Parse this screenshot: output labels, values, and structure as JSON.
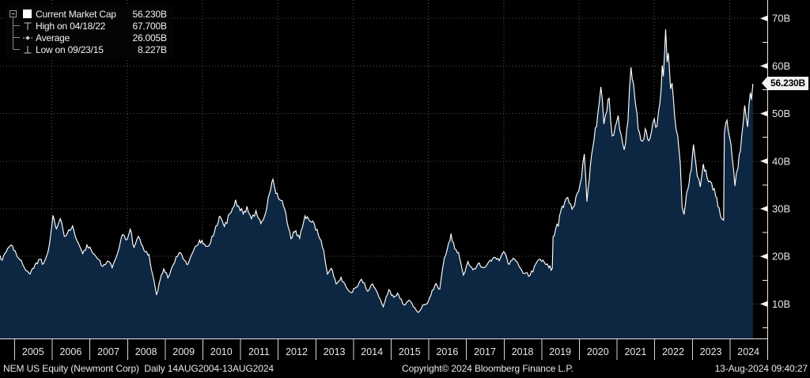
{
  "legend": {
    "rows": [
      {
        "label": "Current Market Cap",
        "value": "56.230B",
        "marker": "square"
      },
      {
        "label": "High on 04/18/22",
        "value": "67.700B",
        "marker": "high"
      },
      {
        "label": "Average",
        "value": "26.005B",
        "marker": "average"
      },
      {
        "label": "Low on 09/23/15",
        "value": "8.227B",
        "marker": "low"
      }
    ]
  },
  "y_axis": {
    "labels": [
      {
        "value": 70,
        "text": "70B"
      },
      {
        "value": 60,
        "text": "60B"
      },
      {
        "value": 50,
        "text": "50B"
      },
      {
        "value": 40,
        "text": "40B"
      },
      {
        "value": 30,
        "text": "30B"
      },
      {
        "value": 20,
        "text": "20B"
      },
      {
        "value": 10,
        "text": "10B"
      }
    ],
    "minor_ticks": [
      65,
      55,
      45,
      35,
      25,
      15,
      5
    ],
    "current": {
      "value": 56.23,
      "text": "56.230B"
    }
  },
  "x_axis": {
    "years": [
      "2005",
      "2006",
      "2007",
      "2008",
      "2009",
      "2010",
      "2011",
      "2012",
      "2013",
      "2014",
      "2015",
      "2016",
      "2017",
      "2018",
      "2019",
      "2020",
      "2021",
      "2022",
      "2023",
      "2024"
    ]
  },
  "footer": {
    "instrument": "NEM US Equity (Newmont Corp)",
    "period_range": "Daily 14AUG2004-13AUG2024",
    "copyright": "Copyright© 2024 Bloomberg Finance L.P.",
    "timestamp": "13-Aug-2024 09:40:27"
  },
  "chart_data": {
    "type": "area",
    "title": "Current Market Cap",
    "series_name": "Current Market Cap",
    "x_unit": "decimal_year",
    "y_unit": "USD billions",
    "x_range": [
      "14AUG2004",
      "13AUG2024"
    ],
    "ylim": [
      2.8,
      73.9
    ],
    "grid": "dotted",
    "x_gridline_years": [
      2006,
      2008,
      2010,
      2012,
      2014,
      2016,
      2018,
      2020,
      2022,
      2024
    ],
    "legend_position": "top-left",
    "stats": {
      "current": 56.23,
      "high": {
        "date": "04/18/22",
        "value": 67.7
      },
      "average": 26.005,
      "low": {
        "date": "09/23/15",
        "value": 8.227
      }
    },
    "colors": {
      "background": "#000000",
      "fill": "#0d2742",
      "line": "#ffffff",
      "grid": "#565656",
      "axis_text": "#e8e8e8",
      "badge_bg": "#f2f2f2",
      "badge_text": "#000000"
    },
    "points": [
      [
        2004.62,
        20.2
      ],
      [
        2004.68,
        19.2
      ],
      [
        2004.75,
        20.6
      ],
      [
        2004.82,
        21.6
      ],
      [
        2004.92,
        22.4
      ],
      [
        2005.02,
        21.2
      ],
      [
        2005.12,
        19.6
      ],
      [
        2005.25,
        17.9
      ],
      [
        2005.42,
        16.3
      ],
      [
        2005.55,
        18.2
      ],
      [
        2005.68,
        19.4
      ],
      [
        2005.78,
        18.5
      ],
      [
        2005.9,
        21.0
      ],
      [
        2006.03,
        28.6
      ],
      [
        2006.12,
        25.8
      ],
      [
        2006.22,
        27.9
      ],
      [
        2006.33,
        24.2
      ],
      [
        2006.45,
        25.6
      ],
      [
        2006.55,
        26.4
      ],
      [
        2006.7,
        22.8
      ],
      [
        2006.82,
        20.6
      ],
      [
        2006.93,
        22.4
      ],
      [
        2007.05,
        21.2
      ],
      [
        2007.2,
        19.6
      ],
      [
        2007.35,
        17.9
      ],
      [
        2007.48,
        19.0
      ],
      [
        2007.6,
        17.6
      ],
      [
        2007.75,
        20.8
      ],
      [
        2007.88,
        24.6
      ],
      [
        2008.0,
        23.5
      ],
      [
        2008.08,
        25.7
      ],
      [
        2008.18,
        21.9
      ],
      [
        2008.3,
        24.2
      ],
      [
        2008.45,
        21.2
      ],
      [
        2008.58,
        20.4
      ],
      [
        2008.68,
        16.0
      ],
      [
        2008.78,
        11.9
      ],
      [
        2008.88,
        15.2
      ],
      [
        2008.97,
        17.4
      ],
      [
        2009.08,
        15.5
      ],
      [
        2009.22,
        18.2
      ],
      [
        2009.38,
        20.8
      ],
      [
        2009.52,
        19.2
      ],
      [
        2009.62,
        18.4
      ],
      [
        2009.78,
        21.6
      ],
      [
        2009.92,
        23.4
      ],
      [
        2010.05,
        22.6
      ],
      [
        2010.18,
        22.3
      ],
      [
        2010.32,
        25.2
      ],
      [
        2010.45,
        28.4
      ],
      [
        2010.58,
        26.3
      ],
      [
        2010.72,
        28.9
      ],
      [
        2010.88,
        31.9
      ],
      [
        2011.0,
        29.6
      ],
      [
        2011.08,
        28.9
      ],
      [
        2011.18,
        30.5
      ],
      [
        2011.3,
        27.9
      ],
      [
        2011.42,
        29.6
      ],
      [
        2011.55,
        26.9
      ],
      [
        2011.68,
        29.2
      ],
      [
        2011.78,
        33.2
      ],
      [
        2011.87,
        36.2
      ],
      [
        2011.95,
        33.2
      ],
      [
        2012.05,
        31.9
      ],
      [
        2012.18,
        30.0
      ],
      [
        2012.35,
        23.7
      ],
      [
        2012.48,
        25.4
      ],
      [
        2012.58,
        23.8
      ],
      [
        2012.72,
        28.5
      ],
      [
        2012.85,
        27.4
      ],
      [
        2012.97,
        26.8
      ],
      [
        2013.08,
        24.4
      ],
      [
        2013.22,
        21.2
      ],
      [
        2013.32,
        16.3
      ],
      [
        2013.42,
        17.5
      ],
      [
        2013.55,
        14.2
      ],
      [
        2013.68,
        15.6
      ],
      [
        2013.82,
        13.5
      ],
      [
        2013.95,
        12.4
      ],
      [
        2014.08,
        13.5
      ],
      [
        2014.22,
        15.2
      ],
      [
        2014.38,
        12.7
      ],
      [
        2014.52,
        14.2
      ],
      [
        2014.65,
        12.3
      ],
      [
        2014.8,
        9.4
      ],
      [
        2014.95,
        13.0
      ],
      [
        2015.08,
        11.4
      ],
      [
        2015.18,
        12.3
      ],
      [
        2015.35,
        9.8
      ],
      [
        2015.48,
        10.8
      ],
      [
        2015.6,
        9.4
      ],
      [
        2015.73,
        8.227
      ],
      [
        2015.85,
        9.8
      ],
      [
        2015.97,
        10.1
      ],
      [
        2016.1,
        12.9
      ],
      [
        2016.2,
        14.3
      ],
      [
        2016.3,
        13.1
      ],
      [
        2016.42,
        19.6
      ],
      [
        2016.5,
        21.5
      ],
      [
        2016.6,
        24.8
      ],
      [
        2016.7,
        21.6
      ],
      [
        2016.8,
        20.8
      ],
      [
        2016.93,
        16.1
      ],
      [
        2017.05,
        18.9
      ],
      [
        2017.18,
        17.2
      ],
      [
        2017.32,
        18.5
      ],
      [
        2017.45,
        17.6
      ],
      [
        2017.6,
        18.8
      ],
      [
        2017.75,
        19.8
      ],
      [
        2017.88,
        19.1
      ],
      [
        2018.0,
        21.0
      ],
      [
        2018.12,
        18.4
      ],
      [
        2018.25,
        19.6
      ],
      [
        2018.4,
        18.1
      ],
      [
        2018.55,
        16.4
      ],
      [
        2018.7,
        16.0
      ],
      [
        2018.85,
        18.4
      ],
      [
        2018.97,
        19.4
      ],
      [
        2019.08,
        18.7
      ],
      [
        2019.2,
        17.6
      ],
      [
        2019.29,
        17.5
      ],
      [
        2019.31,
        24.2
      ],
      [
        2019.38,
        25.8
      ],
      [
        2019.45,
        26.4
      ],
      [
        2019.52,
        29.6
      ],
      [
        2019.62,
        31.4
      ],
      [
        2019.7,
        32.4
      ],
      [
        2019.78,
        31.0
      ],
      [
        2019.85,
        30.4
      ],
      [
        2019.95,
        33.2
      ],
      [
        2020.03,
        35.2
      ],
      [
        2020.1,
        39.5
      ],
      [
        2020.14,
        41.5
      ],
      [
        2020.21,
        31.5
      ],
      [
        2020.3,
        39.0
      ],
      [
        2020.4,
        44.5
      ],
      [
        2020.5,
        50.0
      ],
      [
        2020.58,
        55.6
      ],
      [
        2020.66,
        47.8
      ],
      [
        2020.74,
        50.5
      ],
      [
        2020.8,
        53.2
      ],
      [
        2020.88,
        45.3
      ],
      [
        2020.96,
        47.2
      ],
      [
        2021.04,
        49.6
      ],
      [
        2021.12,
        45.5
      ],
      [
        2021.2,
        42.4
      ],
      [
        2021.3,
        48.5
      ],
      [
        2021.38,
        59.7
      ],
      [
        2021.48,
        53.5
      ],
      [
        2021.57,
        46.8
      ],
      [
        2021.68,
        44.2
      ],
      [
        2021.76,
        46.8
      ],
      [
        2021.85,
        44.3
      ],
      [
        2021.93,
        46.5
      ],
      [
        2022.0,
        48.9
      ],
      [
        2022.07,
        47.3
      ],
      [
        2022.15,
        52.3
      ],
      [
        2022.21,
        60.1
      ],
      [
        2022.24,
        57.8
      ],
      [
        2022.3,
        67.7
      ],
      [
        2022.34,
        60.8
      ],
      [
        2022.37,
        62.7
      ],
      [
        2022.43,
        55.2
      ],
      [
        2022.47,
        56.4
      ],
      [
        2022.54,
        49.4
      ],
      [
        2022.62,
        45.4
      ],
      [
        2022.69,
        39.5
      ],
      [
        2022.74,
        30.2
      ],
      [
        2022.79,
        28.8
      ],
      [
        2022.86,
        33.4
      ],
      [
        2022.92,
        35.2
      ],
      [
        2022.98,
        38.0
      ],
      [
        2023.04,
        43.5
      ],
      [
        2023.14,
        36.8
      ],
      [
        2023.22,
        34.6
      ],
      [
        2023.3,
        39.4
      ],
      [
        2023.4,
        36.6
      ],
      [
        2023.52,
        35.4
      ],
      [
        2023.63,
        32.6
      ],
      [
        2023.72,
        30.2
      ],
      [
        2023.8,
        27.8
      ],
      [
        2023.84,
        27.6
      ],
      [
        2023.86,
        45.8
      ],
      [
        2023.93,
        48.6
      ],
      [
        2024.0,
        45.0
      ],
      [
        2024.07,
        40.6
      ],
      [
        2024.14,
        34.8
      ],
      [
        2024.22,
        38.5
      ],
      [
        2024.32,
        45.2
      ],
      [
        2024.4,
        51.7
      ],
      [
        2024.48,
        47.2
      ],
      [
        2024.55,
        54.4
      ],
      [
        2024.58,
        52.9
      ],
      [
        2024.617,
        56.23
      ]
    ]
  }
}
